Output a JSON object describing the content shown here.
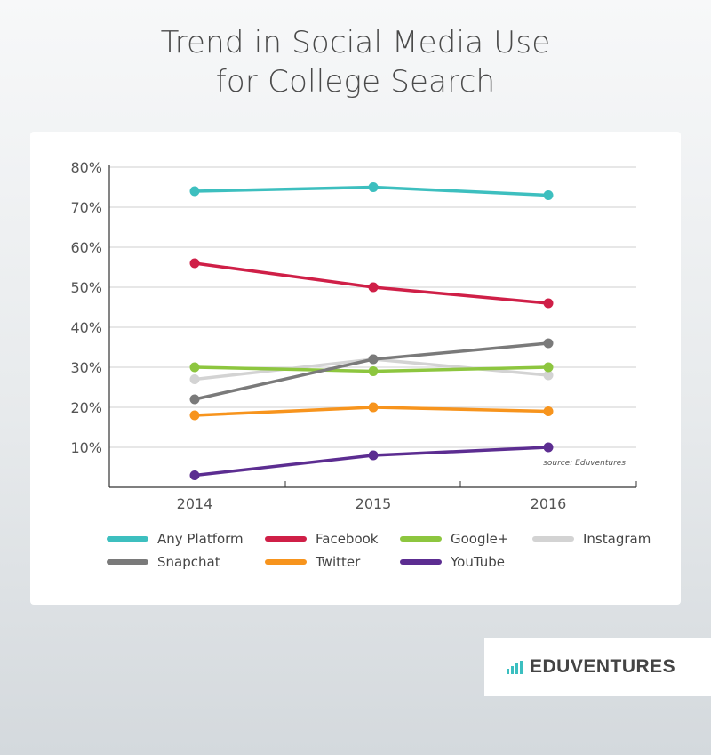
{
  "header": {
    "title_line1": "Trend in Social Media Use",
    "title_line2": "for College Search"
  },
  "chart_data": {
    "type": "line",
    "title": "Trend in Social Media Use for College Search",
    "xlabel": "",
    "ylabel": "",
    "x": [
      "2014",
      "2015",
      "2016"
    ],
    "ylim": [
      0,
      80
    ],
    "yticks": [
      10,
      20,
      30,
      40,
      50,
      60,
      70,
      80
    ],
    "ytick_labels": [
      "10%",
      "20%",
      "30%",
      "40%",
      "50%",
      "60%",
      "70%",
      "80%"
    ],
    "grid": true,
    "legend": "bottom",
    "annotation": "source: Eduventures",
    "series": [
      {
        "name": "Any Platform",
        "color": "#3dbfbf",
        "values": [
          74,
          75,
          73
        ]
      },
      {
        "name": "Facebook",
        "color": "#cf1f47",
        "values": [
          56,
          50,
          46
        ]
      },
      {
        "name": "Google+",
        "color": "#8dc63f",
        "values": [
          30,
          29,
          30
        ]
      },
      {
        "name": "Instagram",
        "color": "#d3d3d3",
        "values": [
          27,
          32,
          28
        ]
      },
      {
        "name": "Snapchat",
        "color": "#7a7a7a",
        "values": [
          22,
          32,
          36
        ]
      },
      {
        "name": "Twitter",
        "color": "#f7941d",
        "values": [
          18,
          20,
          19
        ]
      },
      {
        "name": "YouTube",
        "color": "#5c2d91",
        "values": [
          3,
          8,
          10
        ]
      }
    ]
  },
  "logo": {
    "text": "EDUVENTURES",
    "accent_color": "#3bbfc0"
  }
}
